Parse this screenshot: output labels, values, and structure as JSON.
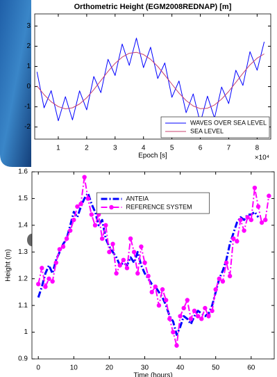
{
  "chart_data": [
    {
      "type": "line",
      "title": "Orthometric Height (EGM2008REDNAP) [m]",
      "xlabel": "Epoch [s]",
      "x_scale_label": "×10⁴",
      "xlim": [
        1700,
        84800
      ],
      "ylim": [
        -2.6,
        3.6
      ],
      "xticks": [
        {
          "value": 10000,
          "label": "1"
        },
        {
          "value": 20000,
          "label": "2"
        },
        {
          "value": 30000,
          "label": "3"
        },
        {
          "value": 40000,
          "label": "4"
        },
        {
          "value": 50000,
          "label": "5"
        },
        {
          "value": 60000,
          "label": "6"
        },
        {
          "value": 70000,
          "label": "7"
        },
        {
          "value": 80000,
          "label": "8"
        }
      ],
      "yticks": [
        -2,
        -1,
        0,
        1,
        2,
        3
      ],
      "grid": false,
      "legend": "lower right",
      "series": [
        {
          "name": "WAVES OVER SEA LEVEL",
          "color": "#0000ff",
          "line_style": "solid",
          "x": [
            2500,
            5000,
            7500,
            10000,
            12500,
            15000,
            17500,
            20000,
            22500,
            25000,
            27500,
            30000,
            32500,
            35000,
            37500,
            40000,
            42500,
            45000,
            47500,
            50000,
            52500,
            55000,
            57500,
            60000,
            62500,
            65000,
            67500,
            70000,
            72500,
            75000,
            77500,
            80000,
            82500
          ],
          "values": [
            0.73,
            -1.05,
            -0.2,
            -1.69,
            -0.5,
            -1.65,
            -0.21,
            -1.15,
            0.5,
            -0.3,
            1.35,
            0.55,
            2.11,
            1.05,
            2.4,
            0.94,
            1.95,
            0.4,
            1.17,
            -0.53,
            0.28,
            -1.29,
            -0.36,
            -1.79,
            -0.47,
            -1.56,
            -0.02,
            -0.84,
            0.81,
            0.06,
            1.73,
            0.81,
            2.22
          ]
        },
        {
          "name": "SEA LEVEL",
          "color": "#c8406e",
          "line_style": "solid",
          "x": [
            2500,
            5000,
            7500,
            10000,
            12500,
            15000,
            17500,
            20000,
            22500,
            25000,
            27500,
            30000,
            32500,
            35000,
            37500,
            40000,
            42500,
            45000,
            47500,
            50000,
            52500,
            55000,
            57500,
            60000,
            62500,
            65000,
            67500,
            70000,
            72500,
            75000,
            77500,
            80000,
            82500
          ],
          "values": [
            0.03,
            -0.4,
            -0.75,
            -0.99,
            -1.1,
            -1.05,
            -0.86,
            -0.55,
            -0.15,
            0.3,
            0.75,
            1.15,
            1.46,
            1.65,
            1.7,
            1.59,
            1.35,
            1.0,
            0.57,
            0.12,
            -0.32,
            -0.69,
            -0.96,
            -1.09,
            -1.07,
            -0.91,
            -0.62,
            -0.24,
            0.21,
            0.66,
            1.08,
            1.41,
            1.62
          ]
        }
      ]
    },
    {
      "type": "line",
      "xlabel": "Time (hours)",
      "ylabel": "Height (m)",
      "xlim": [
        -1.8,
        66.5
      ],
      "ylim": [
        0.9,
        1.6
      ],
      "xticks": [
        0,
        10,
        20,
        30,
        40,
        50,
        60
      ],
      "yticks": [
        0.9,
        1,
        1.1,
        1.2,
        1.3,
        1.4,
        1.5,
        1.6
      ],
      "grid": false,
      "legend": "upper center",
      "series": [
        {
          "name": "ANTEIA",
          "color": "#0000ff",
          "line_style": "dashdot",
          "x": [
            0,
            1,
            2,
            3,
            4,
            5,
            6,
            7,
            8,
            9,
            10,
            11,
            12,
            13,
            14,
            15,
            16,
            17,
            18,
            19,
            20,
            21,
            22,
            23,
            24,
            25,
            26,
            27,
            28,
            29,
            30,
            31,
            32,
            33,
            34,
            35,
            36,
            37,
            38,
            39,
            40,
            41,
            42,
            43,
            44,
            45,
            46,
            47,
            48,
            49,
            50,
            51,
            52,
            53,
            54,
            55,
            56,
            57,
            58,
            59,
            60,
            61,
            62
          ],
          "values": [
            1.13,
            1.17,
            1.22,
            1.25,
            1.22,
            1.27,
            1.3,
            1.33,
            1.35,
            1.4,
            1.45,
            1.43,
            1.47,
            1.5,
            1.52,
            1.48,
            1.45,
            1.4,
            1.42,
            1.35,
            1.32,
            1.3,
            1.28,
            1.25,
            1.26,
            1.25,
            1.28,
            1.26,
            1.3,
            1.25,
            1.22,
            1.2,
            1.18,
            1.17,
            1.15,
            1.13,
            1.1,
            1.06,
            1.04,
            0.99,
            1.02,
            1.06,
            1.05,
            1.03,
            1.06,
            1.08,
            1.07,
            1.06,
            1.07,
            1.1,
            1.15,
            1.2,
            1.23,
            1.27,
            1.33,
            1.37,
            1.41,
            1.43,
            1.42,
            1.44,
            1.44,
            1.45,
            1.43
          ]
        },
        {
          "name": "REFERENCE SYSTEM",
          "color": "#ff00ff",
          "line_style": "dashdot",
          "marker": "circle",
          "x": [
            0,
            1,
            2,
            3,
            4,
            5,
            6,
            7,
            8,
            9,
            10,
            11,
            12,
            13,
            14,
            15,
            16,
            17,
            18,
            19,
            20,
            21,
            22,
            23,
            24,
            25,
            26,
            27,
            28,
            29,
            30,
            31,
            32,
            33,
            34,
            35,
            36,
            37,
            38,
            39,
            40,
            41,
            42,
            43,
            44,
            45,
            46,
            47,
            48,
            49,
            50,
            51,
            52,
            53,
            54,
            55,
            56,
            57,
            58,
            59,
            60,
            61,
            62,
            63,
            64,
            65
          ],
          "values": [
            1.18,
            1.24,
            1.17,
            1.2,
            1.19,
            1.26,
            1.31,
            1.32,
            1.35,
            1.38,
            1.42,
            1.47,
            1.48,
            1.58,
            1.5,
            1.44,
            1.4,
            1.44,
            1.35,
            1.4,
            1.3,
            1.33,
            1.22,
            1.25,
            1.27,
            1.24,
            1.35,
            1.3,
            1.22,
            1.32,
            1.26,
            1.21,
            1.15,
            1.17,
            1.1,
            1.16,
            1.12,
            1.05,
            1.0,
            0.95,
            1.06,
            1.09,
            1.12,
            1.05,
            1.08,
            1.06,
            1.05,
            1.09,
            1.06,
            1.08,
            1.16,
            1.2,
            1.19,
            1.26,
            1.21,
            1.35,
            1.34,
            1.42,
            1.38,
            1.43,
            1.42,
            1.54,
            1.47,
            1.41,
            1.42,
            1.51
          ]
        }
      ]
    }
  ]
}
